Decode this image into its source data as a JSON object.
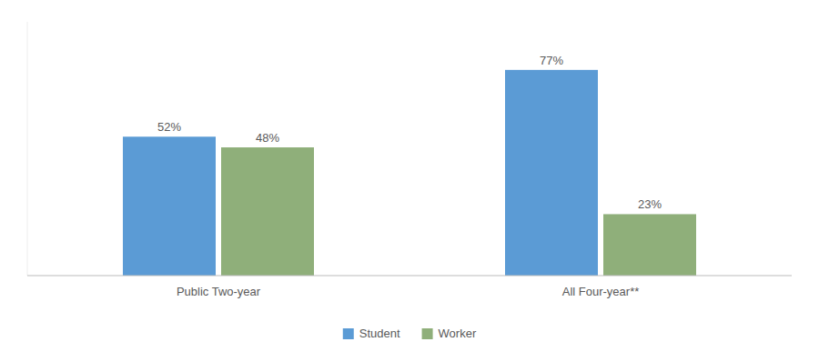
{
  "chart_data": {
    "type": "bar",
    "categories": [
      "Public Two-year",
      "All Four-year**"
    ],
    "series": [
      {
        "name": "Student",
        "color": "#5B9BD5",
        "values": [
          52,
          77
        ],
        "value_labels": [
          "52%",
          "77%"
        ]
      },
      {
        "name": "Worker",
        "color": "#8FAF7A",
        "values": [
          48,
          23
        ],
        "value_labels": [
          "48%",
          "23%"
        ]
      }
    ],
    "ylim": [
      0,
      95
    ],
    "grid": false,
    "legend": "bottom",
    "data_labels": true,
    "tick_labels": "x"
  }
}
